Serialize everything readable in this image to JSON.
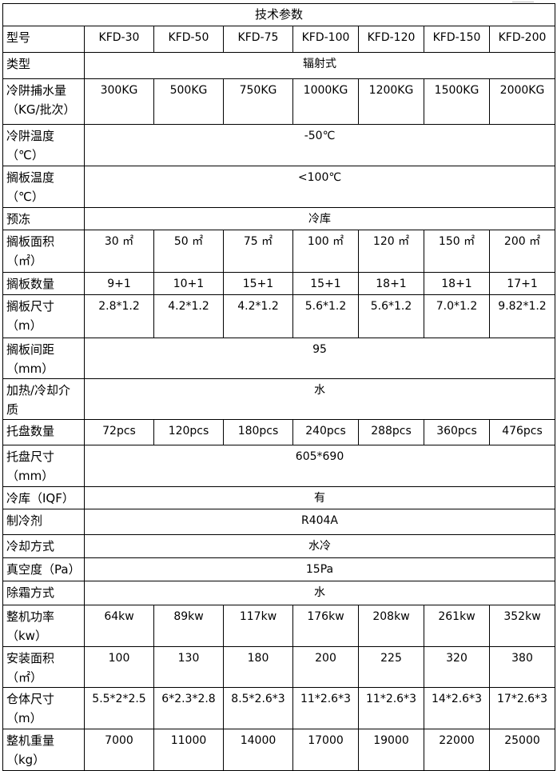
{
  "title": "技术参数",
  "rows": [
    {
      "label": "型号",
      "values": [
        "KFD-30",
        "KFD-50",
        "KFD-75",
        "KFD-100",
        "KFD-120",
        "KFD-150",
        "KFD-200"
      ]
    },
    {
      "label": "类型",
      "span": "辐射式"
    },
    {
      "label": "冷阱捕水量（KG/批次）",
      "values": [
        "300KG",
        "500KG",
        "750KG",
        "1000KG",
        "1200KG",
        "1500KG",
        "2000KG"
      ]
    },
    {
      "label": "冷阱温度（℃）",
      "span": "-50℃"
    },
    {
      "label": "搁板温度（℃）",
      "span": "<100℃"
    },
    {
      "label": "预冻",
      "span": "冷库"
    },
    {
      "label": "搁板面积（㎡）",
      "values": [
        "30 ㎡",
        "50 ㎡",
        "75 ㎡",
        "100 ㎡",
        "120 ㎡",
        "150 ㎡",
        "200 ㎡"
      ]
    },
    {
      "label": "搁板数量",
      "values": [
        "9+1",
        "10+1",
        "15+1",
        "15+1",
        "18+1",
        "18+1",
        "17+1"
      ]
    },
    {
      "label": "搁板尺寸（m）",
      "values": [
        "2.8*1.2",
        "4.2*1.2",
        "4.2*1.2",
        "5.6*1.2",
        "5.6*1.2",
        "7.0*1.2",
        "9.82*1.2"
      ]
    },
    {
      "label": "搁板间距（mm）",
      "span": "95"
    },
    {
      "label": "加热/冷却介质",
      "span": "水"
    },
    {
      "label": "托盘数量",
      "values": [
        "72pcs",
        "120pcs",
        "180pcs",
        "240pcs",
        "288pcs",
        "360pcs",
        "476pcs"
      ]
    },
    {
      "label": "托盘尺寸（mm）",
      "span": "605*690"
    },
    {
      "label": "冷库（IQF）",
      "span": "有"
    },
    {
      "label": "制冷剂",
      "span": "R404A"
    },
    {
      "label": "冷却方式",
      "span": "水冷"
    },
    {
      "label": "真空度（Pa）",
      "span": "15Pa"
    },
    {
      "label": "除霜方式",
      "span": "水"
    },
    {
      "label": "整机功率（kw）",
      "values": [
        "64kw",
        "89kw",
        "117kw",
        "176kw",
        "208kw",
        "261kw",
        "352kw"
      ]
    },
    {
      "label": "安装面积（㎡）",
      "values": [
        "100",
        "130",
        "180",
        "200",
        "225",
        "320",
        "380"
      ]
    },
    {
      "label": "仓体尺寸（m）",
      "values": [
        "5.5*2*2.5",
        "6*2.3*2.8",
        "8.5*2.6*3",
        "11*2.6*3",
        "11*2.6*3",
        "14*2.6*3",
        "17*2.6*3"
      ]
    },
    {
      "label": "整机重量（kg）",
      "values": [
        "7000",
        "11000",
        "14000",
        "17000",
        "19000",
        "22000",
        "25000"
      ]
    }
  ]
}
